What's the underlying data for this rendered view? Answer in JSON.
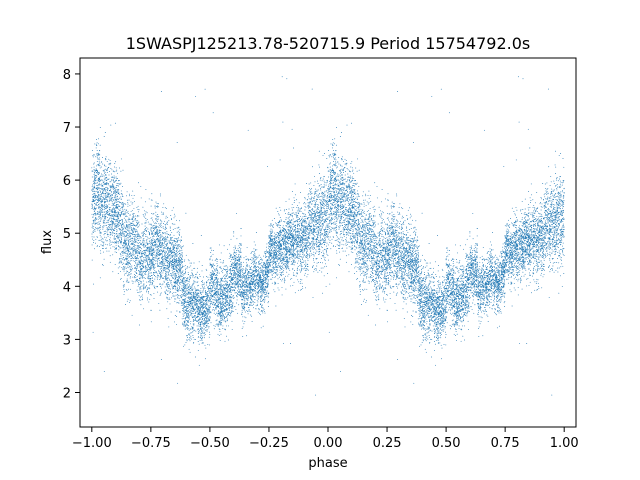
{
  "chart_data": {
    "type": "scatter",
    "title": "1SWASPJ125213.78-520715.9 Period 15754792.0s",
    "xlabel": "phase",
    "ylabel": "flux",
    "xlim": [
      -1.05,
      1.05
    ],
    "ylim": [
      1.35,
      8.3
    ],
    "x_ticks": [
      -1.0,
      -0.75,
      -0.5,
      -0.25,
      0.0,
      0.25,
      0.5,
      0.75,
      1.0
    ],
    "x_tick_labels": [
      "−1.00",
      "−0.75",
      "−0.50",
      "−0.25",
      "0.00",
      "0.25",
      "0.50",
      "0.75",
      "1.00"
    ],
    "y_ticks": [
      2,
      3,
      4,
      5,
      6,
      7,
      8
    ],
    "y_tick_labels": [
      "2",
      "3",
      "4",
      "5",
      "6",
      "7",
      "8"
    ],
    "grid": false,
    "point_color": "#1f77b4",
    "light_curve": {
      "phase": [
        0.0,
        0.05,
        0.1,
        0.15,
        0.2,
        0.25,
        0.3,
        0.35,
        0.4,
        0.45,
        0.5,
        0.55,
        0.6,
        0.65,
        0.7,
        0.75,
        0.8,
        0.85,
        0.9,
        0.95,
        1.0
      ],
      "flux": [
        5.6,
        5.5,
        5.2,
        5.0,
        4.75,
        4.55,
        4.4,
        4.2,
        4.0,
        3.85,
        3.75,
        3.6,
        3.9,
        4.1,
        4.25,
        4.4,
        4.6,
        4.85,
        5.1,
        5.4,
        5.6
      ],
      "scatter": [
        0.45,
        0.45,
        0.4,
        0.4,
        0.4,
        0.4,
        0.4,
        0.35,
        0.35,
        0.3,
        0.3,
        0.3,
        0.3,
        0.25,
        0.25,
        0.25,
        0.3,
        0.3,
        0.35,
        0.4,
        0.45
      ],
      "outlier_range": [
        1.7,
        8.0
      ],
      "points_per_cycle": 9000
    }
  }
}
